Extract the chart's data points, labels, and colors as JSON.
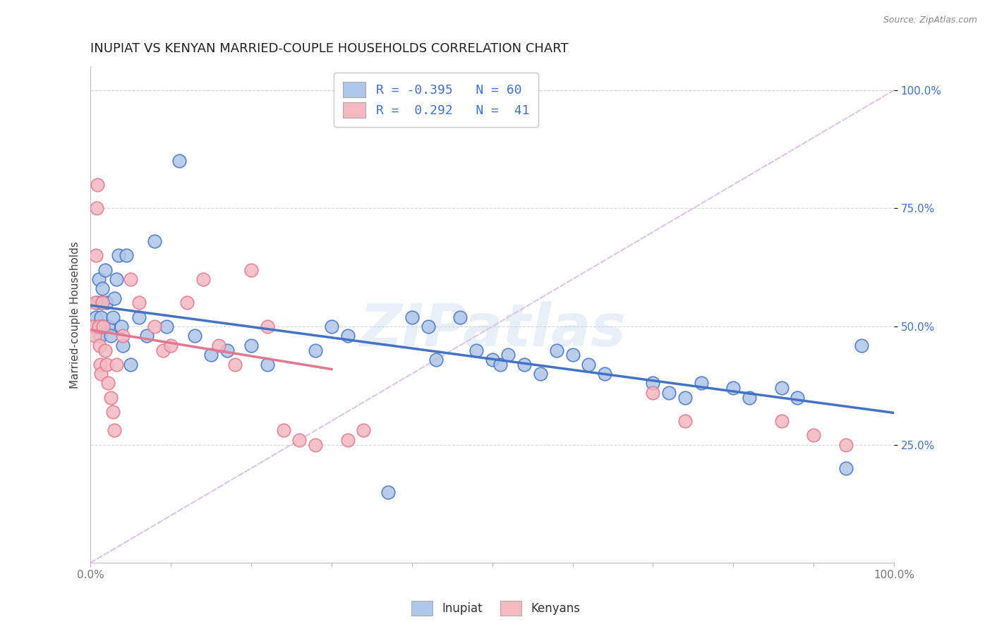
{
  "title": "INUPIAT VS KENYAN MARRIED-COUPLE HOUSEHOLDS CORRELATION CHART",
  "source": "Source: ZipAtlas.com",
  "ylabel": "Married-couple Households",
  "watermark": "ZIPatlas",
  "legend": {
    "inupiat_label": "Inupiat",
    "kenyan_label": "Kenyans",
    "inupiat_R": "-0.395",
    "inupiat_N": "60",
    "kenyan_R": "0.292",
    "kenyan_N": "41"
  },
  "ytick_labels": [
    "25.0%",
    "50.0%",
    "75.0%",
    "100.0%"
  ],
  "ytick_values": [
    0.25,
    0.5,
    0.75,
    1.0
  ],
  "inupiat_color": "#aec6e8",
  "kenyan_color": "#f4b8c0",
  "inupiat_line_color": "#4472c4",
  "kenyan_line_color": "#e07890",
  "trend_line_dashed_color": "#d8c8e0",
  "inupiat_x": [
    0.005,
    0.007,
    0.009,
    0.01,
    0.011,
    0.012,
    0.013,
    0.014,
    0.015,
    0.016,
    0.018,
    0.02,
    0.022,
    0.025,
    0.028,
    0.03,
    0.032,
    0.035,
    0.038,
    0.04,
    0.045,
    0.05,
    0.06,
    0.07,
    0.08,
    0.095,
    0.11,
    0.13,
    0.15,
    0.17,
    0.2,
    0.22,
    0.28,
    0.3,
    0.32,
    0.37,
    0.4,
    0.42,
    0.43,
    0.46,
    0.48,
    0.5,
    0.51,
    0.52,
    0.54,
    0.56,
    0.58,
    0.6,
    0.62,
    0.64,
    0.7,
    0.72,
    0.74,
    0.76,
    0.8,
    0.82,
    0.86,
    0.88,
    0.94,
    0.96
  ],
  "inupiat_y": [
    0.5,
    0.52,
    0.55,
    0.6,
    0.5,
    0.48,
    0.52,
    0.55,
    0.58,
    0.5,
    0.62,
    0.55,
    0.5,
    0.48,
    0.52,
    0.56,
    0.6,
    0.65,
    0.5,
    0.46,
    0.65,
    0.42,
    0.52,
    0.48,
    0.68,
    0.5,
    0.85,
    0.48,
    0.44,
    0.45,
    0.46,
    0.42,
    0.45,
    0.5,
    0.48,
    0.15,
    0.52,
    0.5,
    0.43,
    0.52,
    0.45,
    0.43,
    0.42,
    0.44,
    0.42,
    0.4,
    0.45,
    0.44,
    0.42,
    0.4,
    0.38,
    0.36,
    0.35,
    0.38,
    0.37,
    0.35,
    0.37,
    0.35,
    0.2,
    0.46
  ],
  "kenyan_x": [
    0.003,
    0.005,
    0.006,
    0.007,
    0.008,
    0.009,
    0.01,
    0.011,
    0.012,
    0.013,
    0.015,
    0.016,
    0.018,
    0.02,
    0.022,
    0.025,
    0.028,
    0.03,
    0.032,
    0.04,
    0.05,
    0.06,
    0.08,
    0.09,
    0.1,
    0.12,
    0.14,
    0.16,
    0.18,
    0.2,
    0.22,
    0.24,
    0.26,
    0.28,
    0.32,
    0.34,
    0.7,
    0.74,
    0.86,
    0.9,
    0.94
  ],
  "kenyan_y": [
    0.5,
    0.48,
    0.55,
    0.65,
    0.75,
    0.8,
    0.5,
    0.46,
    0.42,
    0.4,
    0.55,
    0.5,
    0.45,
    0.42,
    0.38,
    0.35,
    0.32,
    0.28,
    0.42,
    0.48,
    0.6,
    0.55,
    0.5,
    0.45,
    0.46,
    0.55,
    0.6,
    0.46,
    0.42,
    0.62,
    0.5,
    0.28,
    0.26,
    0.25,
    0.26,
    0.28,
    0.36,
    0.3,
    0.3,
    0.27,
    0.25
  ],
  "xlim": [
    0.0,
    1.0
  ],
  "ylim": [
    0.0,
    1.05
  ],
  "background_color": "#ffffff",
  "grid_color": "#d5d5d5",
  "title_fontsize": 13,
  "axis_label_fontsize": 11,
  "tick_fontsize": 11
}
